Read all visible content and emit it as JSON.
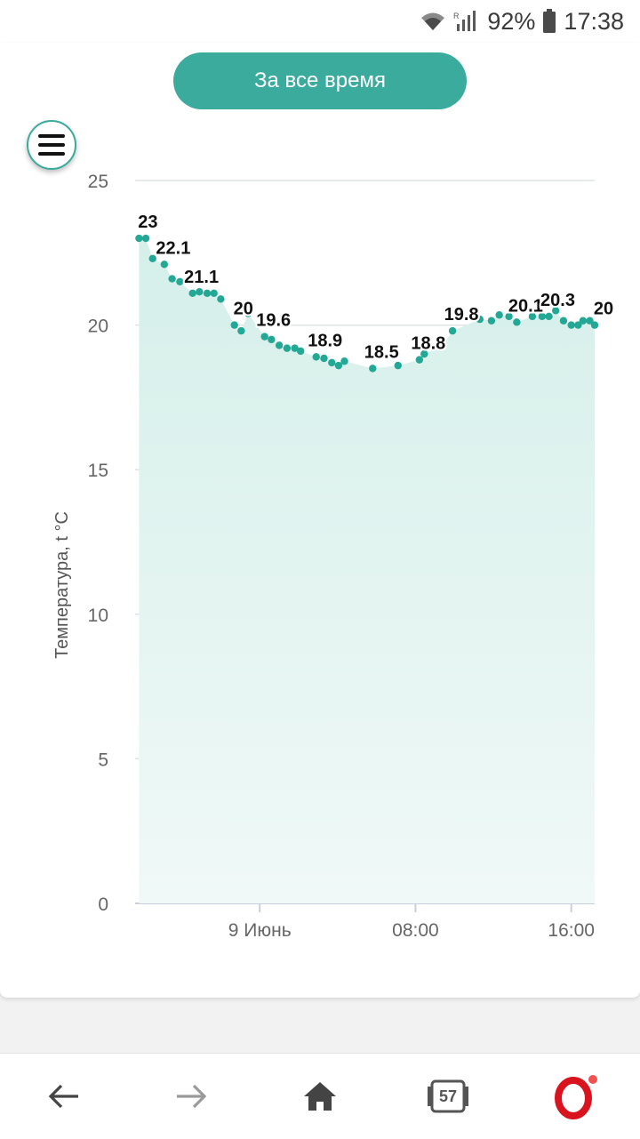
{
  "status_bar": {
    "battery": "92%",
    "time": "17:38",
    "icons": [
      "wifi-icon",
      "signal-icon",
      "battery-icon"
    ]
  },
  "toolbar": {
    "range_label": "За все время",
    "menu_icon": "hamburger-icon"
  },
  "colors": {
    "accent": "#3aab9c",
    "area_top": "#d5efea",
    "area_bottom": "#f0f9f7",
    "point": "#24a896"
  },
  "chart_data": {
    "type": "area",
    "ylabel": "Температура, t °C",
    "xlabel": "",
    "ylim": [
      0,
      25
    ],
    "yticks": [
      0,
      5,
      10,
      15,
      20,
      25
    ],
    "x_tick_labels": [
      "9 Июнь",
      "08:00",
      "16:00"
    ],
    "x_tick_hours": [
      0,
      8,
      16
    ],
    "xlim_hours": [
      -6.4,
      17.2
    ],
    "points": [
      {
        "t": -6.2,
        "v": 23.0,
        "label": "23"
      },
      {
        "t": -5.85,
        "v": 23.0
      },
      {
        "t": -5.5,
        "v": 22.3
      },
      {
        "t": -4.9,
        "v": 22.1,
        "label": "22.1"
      },
      {
        "t": -4.5,
        "v": 21.6
      },
      {
        "t": -4.1,
        "v": 21.5
      },
      {
        "t": -3.45,
        "v": 21.1,
        "label": "21.1"
      },
      {
        "t": -3.1,
        "v": 21.15
      },
      {
        "t": -2.7,
        "v": 21.1
      },
      {
        "t": -2.35,
        "v": 21.1
      },
      {
        "t": -2.0,
        "v": 20.9
      },
      {
        "t": -1.3,
        "v": 20.0,
        "label": "20"
      },
      {
        "t": -0.95,
        "v": 19.8
      },
      {
        "t": -0.6,
        "v": 20.4
      },
      {
        "t": 0.25,
        "v": 19.6,
        "label": "19.6"
      },
      {
        "t": 0.6,
        "v": 19.5
      },
      {
        "t": 1.0,
        "v": 19.3
      },
      {
        "t": 1.4,
        "v": 19.2
      },
      {
        "t": 1.8,
        "v": 19.2
      },
      {
        "t": 2.1,
        "v": 19.1
      },
      {
        "t": 2.9,
        "v": 18.9,
        "label": "18.9"
      },
      {
        "t": 3.3,
        "v": 18.85
      },
      {
        "t": 3.7,
        "v": 18.7
      },
      {
        "t": 4.05,
        "v": 18.6
      },
      {
        "t": 4.35,
        "v": 18.75
      },
      {
        "t": 5.8,
        "v": 18.5,
        "label": "18.5"
      },
      {
        "t": 7.1,
        "v": 18.6
      },
      {
        "t": 8.2,
        "v": 18.8,
        "label": "18.8"
      },
      {
        "t": 8.45,
        "v": 19.0
      },
      {
        "t": 9.4,
        "v": 19.3
      },
      {
        "t": 9.9,
        "v": 19.8,
        "label": "19.8"
      },
      {
        "t": 11.3,
        "v": 20.2
      },
      {
        "t": 11.9,
        "v": 20.15
      },
      {
        "t": 12.3,
        "v": 20.35
      },
      {
        "t": 12.8,
        "v": 20.3
      },
      {
        "t": 13.2,
        "v": 20.1,
        "label": "20.1"
      },
      {
        "t": 14.0,
        "v": 20.3
      },
      {
        "t": 14.5,
        "v": 20.3
      },
      {
        "t": 14.85,
        "v": 20.3,
        "label": "20.3"
      },
      {
        "t": 15.2,
        "v": 20.5
      },
      {
        "t": 15.6,
        "v": 20.15
      },
      {
        "t": 16.0,
        "v": 20.0
      },
      {
        "t": 16.35,
        "v": 20.0
      },
      {
        "t": 16.6,
        "v": 20.15
      },
      {
        "t": 16.95,
        "v": 20.15
      },
      {
        "t": 17.2,
        "v": 20.0,
        "label": "20"
      }
    ]
  },
  "nav": {
    "tab_count": "57",
    "items": [
      "back-arrow-icon",
      "forward-arrow-icon",
      "home-icon",
      "tabs-icon",
      "opera-icon"
    ]
  }
}
